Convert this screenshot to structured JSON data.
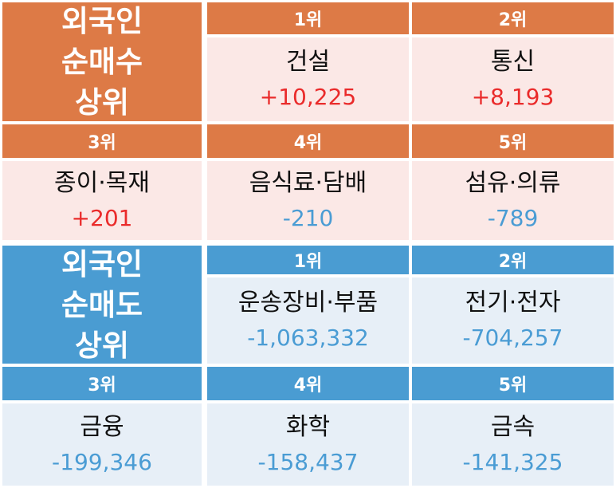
{
  "colors": {
    "buy_header": "#dd7a46",
    "buy_body": "#fbe8e6",
    "sell_header": "#4a9cd2",
    "sell_body": "#e7eff7",
    "positive": "#ea2b2b",
    "negative": "#4a9cd4"
  },
  "buy": {
    "title_lines": [
      "외국인",
      "순매수",
      "상위"
    ],
    "top": [
      {
        "rank": "1위",
        "name": "건설",
        "value": "+10,225"
      },
      {
        "rank": "2위",
        "name": "통신",
        "value": "+8,193"
      }
    ],
    "bottom": [
      {
        "rank": "3위",
        "name": "종이·목재",
        "value": "+201"
      },
      {
        "rank": "4위",
        "name": "음식료·담배",
        "value": "-210"
      },
      {
        "rank": "5위",
        "name": "섬유·의류",
        "value": "-789"
      }
    ]
  },
  "sell": {
    "title_lines": [
      "외국인",
      "순매도",
      "상위"
    ],
    "top": [
      {
        "rank": "1위",
        "name": "운송장비·부품",
        "value": "-1,063,332"
      },
      {
        "rank": "2위",
        "name": "전기·전자",
        "value": "-704,257"
      }
    ],
    "bottom": [
      {
        "rank": "3위",
        "name": "금융",
        "value": "-199,346"
      },
      {
        "rank": "4위",
        "name": "화학",
        "value": "-158,437"
      },
      {
        "rank": "5위",
        "name": "금속",
        "value": "-141,325"
      }
    ]
  }
}
